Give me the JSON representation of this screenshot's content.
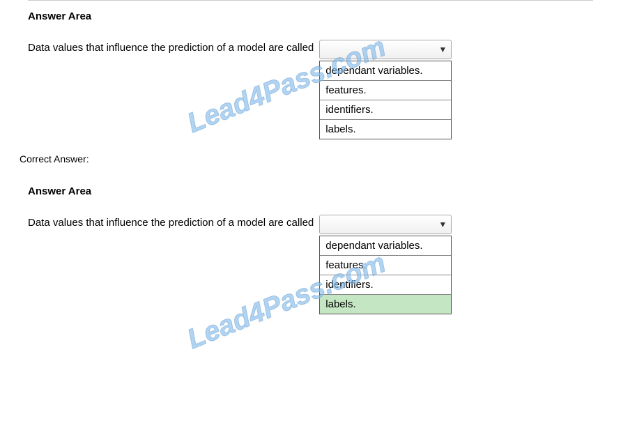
{
  "sections": {
    "top": {
      "title": "Answer Area",
      "question": "Data values that influence the prediction of a model are called",
      "options": [
        "dependant variables.",
        "features.",
        "identifiers.",
        "labels."
      ],
      "highlighted_index": -1
    },
    "correct_label": "Correct Answer:",
    "bottom": {
      "title": "Answer Area",
      "question": "Data values that influence the prediction of a model are called",
      "options": [
        "dependant variables.",
        "features.",
        "identifiers.",
        "labels."
      ],
      "highlighted_index": 3
    }
  },
  "watermark_text": "Lead4Pass.com",
  "colors": {
    "highlight_bg": "#c5e6c2",
    "watermark_color": "rgba(100,170,230,0.5)"
  }
}
